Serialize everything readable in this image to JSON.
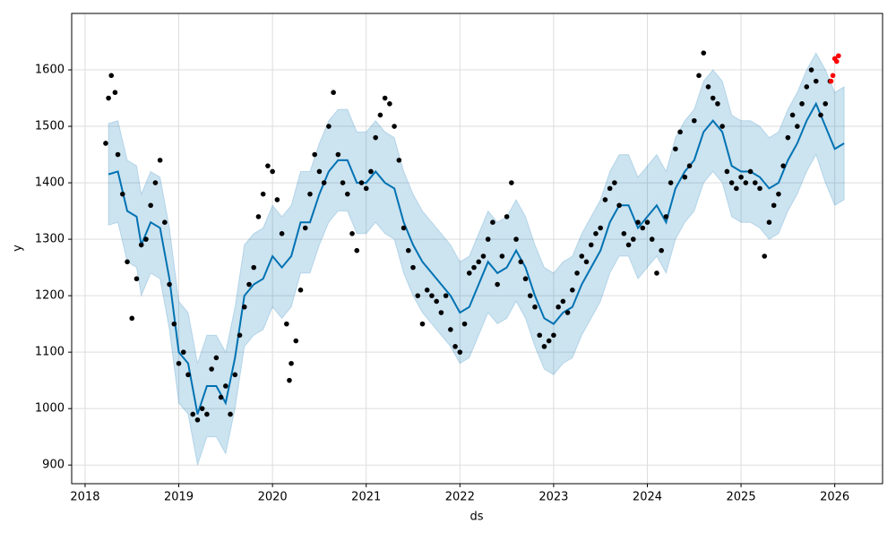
{
  "chart_data": {
    "type": "forecast",
    "xlabel": "ds",
    "ylabel": "y",
    "xlim": [
      2017.857,
      2026.51
    ],
    "xticks": [
      2018,
      2019,
      2020,
      2021,
      2022,
      2023,
      2024,
      2025,
      2026
    ],
    "ylim": [
      867,
      1700
    ],
    "yticks": [
      900,
      1000,
      1100,
      1200,
      1300,
      1400,
      1500,
      1600
    ],
    "grid": true,
    "series": [
      {
        "mark": "band",
        "color": "#0072B2",
        "x": [
          2018.25,
          2018.35,
          2018.45,
          2018.55,
          2018.6,
          2018.7,
          2018.8,
          2018.9,
          2019.0,
          2019.1,
          2019.2,
          2019.3,
          2019.4,
          2019.5,
          2019.6,
          2019.7,
          2019.8,
          2019.9,
          2020.0,
          2020.1,
          2020.2,
          2020.3,
          2020.4,
          2020.5,
          2020.6,
          2020.7,
          2020.8,
          2020.9,
          2021.0,
          2021.1,
          2021.2,
          2021.3,
          2021.4,
          2021.5,
          2021.6,
          2021.7,
          2021.8,
          2021.9,
          2022.0,
          2022.1,
          2022.2,
          2022.3,
          2022.4,
          2022.5,
          2022.6,
          2022.7,
          2022.8,
          2022.9,
          2023.0,
          2023.1,
          2023.2,
          2023.3,
          2023.4,
          2023.5,
          2023.6,
          2023.7,
          2023.8,
          2023.9,
          2024.0,
          2024.1,
          2024.2,
          2024.3,
          2024.4,
          2024.5,
          2024.6,
          2024.7,
          2024.8,
          2024.9,
          2025.0,
          2025.1,
          2025.2,
          2025.3,
          2025.4,
          2025.5,
          2025.6,
          2025.7,
          2025.8,
          2025.9,
          2026.0,
          2026.1
        ],
        "lower": [
          1325,
          1330,
          1260,
          1250,
          1200,
          1240,
          1230,
          1140,
          1010,
          990,
          900,
          950,
          950,
          920,
          1000,
          1110,
          1130,
          1140,
          1180,
          1160,
          1180,
          1240,
          1240,
          1290,
          1330,
          1350,
          1350,
          1310,
          1310,
          1330,
          1310,
          1300,
          1240,
          1200,
          1170,
          1150,
          1130,
          1110,
          1080,
          1090,
          1130,
          1170,
          1150,
          1160,
          1190,
          1160,
          1110,
          1070,
          1060,
          1080,
          1090,
          1130,
          1160,
          1190,
          1240,
          1270,
          1270,
          1230,
          1250,
          1270,
          1240,
          1300,
          1330,
          1350,
          1400,
          1420,
          1400,
          1340,
          1330,
          1330,
          1320,
          1300,
          1310,
          1350,
          1380,
          1420,
          1450,
          1400,
          1360,
          1370
        ],
        "upper": [
          1505,
          1510,
          1440,
          1430,
          1380,
          1420,
          1410,
          1320,
          1190,
          1170,
          1080,
          1130,
          1130,
          1100,
          1180,
          1290,
          1310,
          1320,
          1360,
          1340,
          1360,
          1420,
          1420,
          1470,
          1510,
          1530,
          1530,
          1490,
          1490,
          1510,
          1490,
          1480,
          1420,
          1380,
          1350,
          1330,
          1310,
          1290,
          1260,
          1270,
          1310,
          1350,
          1330,
          1340,
          1370,
          1340,
          1290,
          1250,
          1240,
          1260,
          1270,
          1310,
          1340,
          1370,
          1420,
          1450,
          1450,
          1410,
          1430,
          1450,
          1420,
          1480,
          1510,
          1530,
          1580,
          1600,
          1580,
          1520,
          1510,
          1510,
          1500,
          1480,
          1490,
          1530,
          1560,
          1600,
          1630,
          1600,
          1560,
          1570
        ]
      },
      {
        "mark": "line",
        "color": "#0072B2",
        "x": [
          2018.25,
          2018.35,
          2018.45,
          2018.55,
          2018.6,
          2018.7,
          2018.8,
          2018.9,
          2019.0,
          2019.1,
          2019.2,
          2019.3,
          2019.4,
          2019.5,
          2019.6,
          2019.7,
          2019.8,
          2019.9,
          2020.0,
          2020.1,
          2020.2,
          2020.3,
          2020.4,
          2020.5,
          2020.6,
          2020.7,
          2020.8,
          2020.9,
          2021.0,
          2021.1,
          2021.2,
          2021.3,
          2021.4,
          2021.5,
          2021.6,
          2021.7,
          2021.8,
          2021.9,
          2022.0,
          2022.1,
          2022.2,
          2022.3,
          2022.4,
          2022.5,
          2022.6,
          2022.7,
          2022.8,
          2022.9,
          2023.0,
          2023.1,
          2023.2,
          2023.3,
          2023.4,
          2023.5,
          2023.6,
          2023.7,
          2023.8,
          2023.9,
          2024.0,
          2024.1,
          2024.2,
          2024.3,
          2024.4,
          2024.5,
          2024.6,
          2024.7,
          2024.8,
          2024.9,
          2025.0,
          2025.1,
          2025.2,
          2025.3,
          2025.4,
          2025.5,
          2025.6,
          2025.7,
          2025.8,
          2025.9,
          2026.0,
          2026.1
        ],
        "values": [
          1415,
          1420,
          1350,
          1340,
          1290,
          1330,
          1320,
          1230,
          1100,
          1080,
          990,
          1040,
          1040,
          1010,
          1090,
          1200,
          1220,
          1230,
          1270,
          1250,
          1270,
          1330,
          1330,
          1380,
          1420,
          1440,
          1440,
          1400,
          1400,
          1420,
          1400,
          1390,
          1330,
          1290,
          1260,
          1240,
          1220,
          1200,
          1170,
          1180,
          1220,
          1260,
          1240,
          1250,
          1280,
          1250,
          1200,
          1160,
          1150,
          1170,
          1180,
          1220,
          1250,
          1280,
          1330,
          1360,
          1360,
          1320,
          1340,
          1360,
          1330,
          1390,
          1420,
          1440,
          1490,
          1510,
          1490,
          1430,
          1420,
          1420,
          1410,
          1390,
          1400,
          1440,
          1470,
          1510,
          1540,
          1500,
          1460,
          1470
        ]
      },
      {
        "mark": "scatter",
        "color": "#000000",
        "x": [
          2018.22,
          2018.25,
          2018.28,
          2018.32,
          2018.35,
          2018.4,
          2018.45,
          2018.5,
          2018.55,
          2018.6,
          2018.65,
          2018.7,
          2018.75,
          2018.8,
          2018.85,
          2018.9,
          2018.95,
          2019.0,
          2019.05,
          2019.1,
          2019.15,
          2019.2,
          2019.25,
          2019.3,
          2019.35,
          2019.4,
          2019.45,
          2019.5,
          2019.55,
          2019.6,
          2019.65,
          2019.7,
          2019.75,
          2019.8,
          2019.85,
          2019.9,
          2019.95,
          2020.0,
          2020.05,
          2020.1,
          2020.15,
          2020.18,
          2020.2,
          2020.25,
          2020.3,
          2020.35,
          2020.4,
          2020.45,
          2020.5,
          2020.55,
          2020.6,
          2020.65,
          2020.7,
          2020.75,
          2020.8,
          2020.85,
          2020.9,
          2020.95,
          2021.0,
          2021.05,
          2021.1,
          2021.15,
          2021.2,
          2021.25,
          2021.3,
          2021.35,
          2021.4,
          2021.45,
          2021.5,
          2021.55,
          2021.6,
          2021.65,
          2021.7,
          2021.75,
          2021.8,
          2021.85,
          2021.9,
          2021.95,
          2022.0,
          2022.05,
          2022.1,
          2022.15,
          2022.2,
          2022.25,
          2022.3,
          2022.35,
          2022.4,
          2022.45,
          2022.5,
          2022.55,
          2022.6,
          2022.65,
          2022.7,
          2022.75,
          2022.8,
          2022.85,
          2022.9,
          2022.95,
          2023.0,
          2023.05,
          2023.1,
          2023.15,
          2023.2,
          2023.25,
          2023.3,
          2023.35,
          2023.4,
          2023.45,
          2023.5,
          2023.55,
          2023.6,
          2023.65,
          2023.7,
          2023.75,
          2023.8,
          2023.85,
          2023.9,
          2023.95,
          2024.0,
          2024.05,
          2024.1,
          2024.15,
          2024.2,
          2024.25,
          2024.3,
          2024.35,
          2024.4,
          2024.45,
          2024.5,
          2024.55,
          2024.6,
          2024.65,
          2024.7,
          2024.75,
          2024.8,
          2024.85,
          2024.9,
          2024.95,
          2025.0,
          2025.05,
          2025.1,
          2025.15,
          2025.2,
          2025.25,
          2025.3,
          2025.35,
          2025.4,
          2025.45,
          2025.5,
          2025.55,
          2025.6,
          2025.65,
          2025.7,
          2025.75,
          2025.8,
          2025.85,
          2025.9,
          2025.95
        ],
        "values": [
          1470,
          1550,
          1590,
          1560,
          1450,
          1380,
          1260,
          1160,
          1230,
          1290,
          1300,
          1360,
          1400,
          1440,
          1330,
          1220,
          1150,
          1080,
          1100,
          1060,
          990,
          980,
          1000,
          990,
          1070,
          1090,
          1020,
          1040,
          990,
          1060,
          1130,
          1180,
          1220,
          1250,
          1340,
          1380,
          1430,
          1420,
          1370,
          1310,
          1150,
          1050,
          1080,
          1120,
          1210,
          1320,
          1380,
          1450,
          1420,
          1400,
          1500,
          1560,
          1450,
          1400,
          1380,
          1310,
          1280,
          1400,
          1390,
          1420,
          1480,
          1520,
          1550,
          1540,
          1500,
          1440,
          1320,
          1280,
          1250,
          1200,
          1150,
          1210,
          1200,
          1190,
          1170,
          1200,
          1140,
          1110,
          1100,
          1150,
          1240,
          1250,
          1260,
          1270,
          1300,
          1330,
          1220,
          1270,
          1340,
          1400,
          1300,
          1260,
          1230,
          1200,
          1180,
          1130,
          1110,
          1120,
          1130,
          1180,
          1190,
          1170,
          1210,
          1240,
          1270,
          1260,
          1290,
          1310,
          1320,
          1370,
          1390,
          1400,
          1360,
          1310,
          1290,
          1300,
          1330,
          1320,
          1330,
          1300,
          1240,
          1280,
          1340,
          1400,
          1460,
          1490,
          1410,
          1430,
          1510,
          1590,
          1630,
          1570,
          1550,
          1540,
          1500,
          1420,
          1400,
          1390,
          1410,
          1400,
          1420,
          1400,
          1390,
          1270,
          1330,
          1360,
          1380,
          1430,
          1480,
          1520,
          1500,
          1540,
          1570,
          1600,
          1580,
          1520,
          1540,
          1580
        ]
      },
      {
        "mark": "scatter",
        "color": "#ff0000",
        "x": [
          2025.96,
          2025.98,
          2026.0,
          2026.02,
          2026.04
        ],
        "values": [
          1580,
          1590,
          1620,
          1615,
          1625
        ]
      }
    ]
  }
}
